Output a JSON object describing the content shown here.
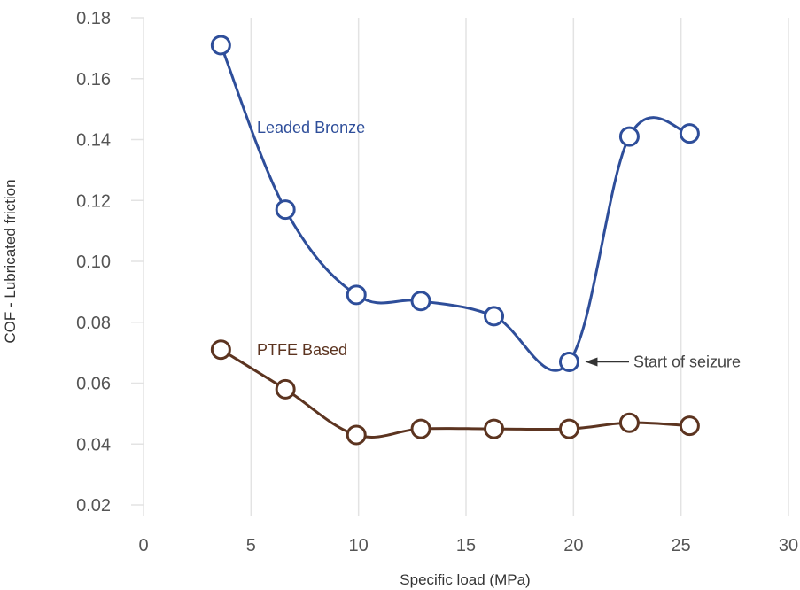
{
  "chart_data": {
    "type": "line",
    "xlabel": "Specific load (MPa)",
    "ylabel": "COF - Lubricated friction",
    "xlim": [
      0,
      30
    ],
    "ylim": [
      0.02,
      0.18
    ],
    "xticks": [
      0,
      5,
      10,
      15,
      20,
      25,
      30
    ],
    "yticks": [
      0.02,
      0.04,
      0.06,
      0.08,
      0.1,
      0.12,
      0.14,
      0.16,
      0.18
    ],
    "xtick_labels": [
      "0",
      "5",
      "10",
      "15",
      "20",
      "25",
      "30"
    ],
    "ytick_labels": [
      "0.02",
      "0.04",
      "0.06",
      "0.08",
      "0.10",
      "0.12",
      "0.14",
      "0.16",
      "0.18"
    ],
    "grid": "vertical",
    "series": [
      {
        "name": "Leaded Bronze",
        "color": "#2e4e9a",
        "marker": "open-circle",
        "x": [
          3.6,
          6.6,
          9.9,
          12.9,
          16.3,
          19.8,
          22.6,
          25.4
        ],
        "y": [
          0.171,
          0.117,
          0.089,
          0.087,
          0.082,
          0.067,
          0.141,
          0.142
        ]
      },
      {
        "name": "PTFE Based",
        "color": "#5c3420",
        "marker": "open-circle",
        "x": [
          3.6,
          6.6,
          9.9,
          12.9,
          16.3,
          19.8,
          22.6,
          25.4
        ],
        "y": [
          0.071,
          0.058,
          0.043,
          0.045,
          0.045,
          0.045,
          0.047,
          0.046
        ]
      }
    ],
    "annotations": [
      {
        "text": "Start of seizure",
        "series": "Leaded Bronze",
        "x": 19.8,
        "y": 0.067,
        "style": "arrow-from-right"
      }
    ]
  }
}
